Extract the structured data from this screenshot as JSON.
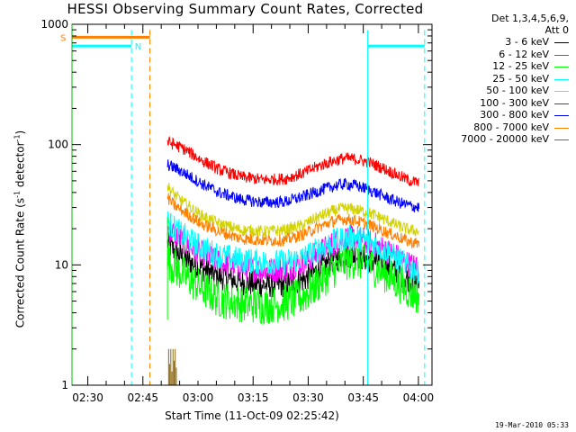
{
  "title": "HESSI Observing Summary Count Rates, Corrected",
  "legend_header": [
    "Det 1,3,4,5,6,9,",
    "Att 0"
  ],
  "legend": [
    {
      "label": "3 - 6 keV",
      "color": "#000000"
    },
    {
      "label": "6 - 12 keV",
      "color": "#ff00ff"
    },
    {
      "label": "12 - 25 keV",
      "color": "#00ff00"
    },
    {
      "label": "25 - 50 keV",
      "color": "#00ffff"
    },
    {
      "label": "50 - 100 keV",
      "color": "#d2d200"
    },
    {
      "label": "100 - 300 keV",
      "color": "#ff0000"
    },
    {
      "label": "300 - 800 keV",
      "color": "#0000ff"
    },
    {
      "label": "800 - 7000 keV",
      "color": "#ff8000"
    },
    {
      "label": "7000 - 20000 keV",
      "color": "#8b6914"
    }
  ],
  "xlabel": "Start Time (11-Oct-09 02:25:42)",
  "ylabel": "Corrected Count Rate (s-1 detector-1)",
  "date_stamp": "19-Mar-2010 05:33",
  "flag_labels": {
    "saa": "S",
    "night": "N"
  },
  "chart_data": {
    "type": "line",
    "x_unit": "minutes since 02:25:42",
    "xlim": [
      0,
      98
    ],
    "ylim": [
      1,
      1000
    ],
    "y_scale": "log",
    "x_ticks": [
      {
        "x": 4.3,
        "label": "02:30"
      },
      {
        "x": 19.3,
        "label": "02:45"
      },
      {
        "x": 34.3,
        "label": "03:00"
      },
      {
        "x": 49.3,
        "label": "03:15"
      },
      {
        "x": 64.3,
        "label": "03:30"
      },
      {
        "x": 79.3,
        "label": "03:45"
      },
      {
        "x": 94.3,
        "label": "04:00"
      }
    ],
    "y_ticks": [
      {
        "y": 1,
        "label": "1"
      },
      {
        "y": 10,
        "label": "10"
      },
      {
        "y": 100,
        "label": "100"
      },
      {
        "y": 1000,
        "label": "1000"
      }
    ],
    "data_start": 26,
    "series": [
      {
        "name": "3 - 6 keV",
        "color": "#000000",
        "x": [
          26,
          28,
          31,
          35,
          40,
          46,
          52,
          58,
          63,
          67,
          71,
          74,
          77,
          81,
          85,
          89,
          92,
          94.5
        ],
        "y": [
          15,
          13,
          11,
          9.5,
          8,
          7.2,
          6.8,
          6.9,
          7.5,
          9,
          11,
          12,
          12,
          11,
          10,
          8.5,
          7.5,
          7
        ]
      },
      {
        "name": "6 - 12 keV",
        "color": "#ff00ff",
        "x": [
          26,
          28,
          31,
          35,
          40,
          46,
          52,
          58,
          63,
          67,
          71,
          74,
          77,
          81,
          85,
          89,
          92,
          94.5
        ],
        "y": [
          20,
          18,
          15,
          12.5,
          10.5,
          9.5,
          9,
          9.2,
          10.5,
          12.5,
          15,
          16.5,
          17,
          15.5,
          13.5,
          11.5,
          10,
          9.5
        ]
      },
      {
        "name": "12 - 25 keV",
        "color": "#00ff00",
        "x": [
          26,
          28,
          31,
          35,
          40,
          46,
          52,
          58,
          63,
          67,
          71,
          74,
          77,
          81,
          85,
          89,
          92,
          94.5
        ],
        "y": [
          11,
          9.5,
          8,
          6.5,
          5.2,
          4.8,
          4.6,
          4.8,
          5.5,
          7,
          9,
          10.5,
          11,
          10,
          8.5,
          7,
          6,
          5.5
        ]
      },
      {
        "name": "25 - 50 keV",
        "color": "#00ffff",
        "x": [
          26,
          28,
          31,
          35,
          40,
          46,
          52,
          58,
          63,
          67,
          71,
          74,
          77,
          81,
          85,
          89,
          92,
          94.5
        ],
        "y": [
          23,
          20,
          17,
          14,
          12,
          11,
          10.5,
          10.5,
          11.5,
          13.5,
          15.5,
          16.5,
          17,
          15.5,
          13.5,
          11,
          9.5,
          9
        ]
      },
      {
        "name": "50 - 100 keV",
        "color": "#d2d200",
        "x": [
          26,
          28,
          31,
          35,
          40,
          46,
          52,
          58,
          63,
          67,
          71,
          74,
          77,
          81,
          85,
          89,
          92,
          94.5
        ],
        "y": [
          45,
          38,
          32,
          26,
          22,
          19.5,
          19,
          19.5,
          21.5,
          25,
          28,
          29.5,
          29,
          27,
          24,
          21,
          19.5,
          19
        ]
      },
      {
        "name": "100 - 300 keV",
        "color": "#ff0000",
        "x": [
          26,
          28,
          31,
          35,
          40,
          46,
          52,
          58,
          63,
          67,
          71,
          74,
          77,
          81,
          85,
          89,
          92,
          94.5
        ],
        "y": [
          105,
          100,
          90,
          75,
          62,
          54,
          51,
          52,
          58,
          66,
          73,
          77,
          76,
          71,
          63,
          55,
          50,
          48
        ]
      },
      {
        "name": "300 - 800 keV",
        "color": "#0000ff",
        "x": [
          26,
          28,
          31,
          35,
          40,
          46,
          52,
          58,
          63,
          67,
          71,
          74,
          77,
          81,
          85,
          89,
          92,
          94.5
        ],
        "y": [
          68,
          64,
          57,
          48,
          40,
          35,
          33,
          33.5,
          37,
          41,
          45,
          47,
          46,
          42,
          37,
          33,
          31,
          30
        ]
      },
      {
        "name": "800 - 7000 keV",
        "color": "#ff8000",
        "x": [
          26,
          28,
          31,
          35,
          40,
          46,
          52,
          58,
          63,
          67,
          71,
          74,
          77,
          81,
          85,
          89,
          92,
          94.5
        ],
        "y": [
          36,
          31,
          27,
          22,
          19,
          16.5,
          16,
          16,
          18,
          20.5,
          23,
          24,
          23.5,
          21.5,
          19,
          17,
          15.5,
          15
        ]
      },
      {
        "name": "7000 - 20000 keV",
        "color": "#8b6914",
        "x": [
          26.3,
          26.6,
          26.9,
          27.2,
          27.5,
          27.8,
          28.1,
          28.4
        ],
        "y": [
          2,
          1.5,
          2,
          1.3,
          2,
          1.6,
          2,
          1.4
        ]
      }
    ],
    "flags": [
      {
        "name": "S",
        "color": "#ff8000",
        "y": 780,
        "segments": [
          [
            0,
            21.2
          ]
        ]
      },
      {
        "name": "N",
        "color": "#00ffff",
        "y": 660,
        "segments": [
          [
            0,
            16.2
          ],
          [
            80.5,
            96
          ]
        ]
      }
    ],
    "vlines": [
      {
        "x": 16.2,
        "color": "#00ffff",
        "style": "dashed"
      },
      {
        "x": 21.2,
        "color": "#ff8000",
        "style": "dashed"
      },
      {
        "x": 80.5,
        "color": "#00ffff",
        "style": "solid"
      },
      {
        "x": 96,
        "color": "#00ffff",
        "style": "dashed"
      }
    ]
  }
}
